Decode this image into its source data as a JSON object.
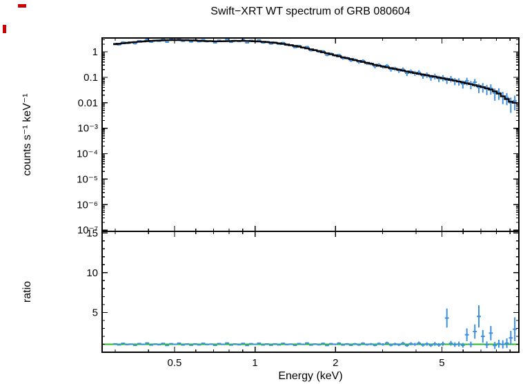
{
  "figure": {
    "title": "Swift−XRT WT spectrum of GRB 080604",
    "background": "#ffffff"
  },
  "chart_data": {
    "type": "scatter",
    "title": "Swift−XRT WT spectrum of GRB 080604",
    "xlabel": "Energy (keV)",
    "legend": "none",
    "grid": false,
    "bin_halfwidth_factor": 1.0175,
    "colors": {
      "data": "#3d8fe0",
      "model": "#000000",
      "unity_line": "#22bb22",
      "frame": "#000000",
      "text": "#000000",
      "corner_marks": "#cc0000"
    },
    "xticks": {
      "values": [
        0.5,
        1,
        2,
        5
      ],
      "labels": [
        "0.5",
        "1",
        "2",
        "5"
      ]
    },
    "x_minor_ticks": [
      0.3,
      0.4,
      0.6,
      0.7,
      0.8,
      0.9,
      3,
      4,
      6,
      7,
      8,
      9
    ],
    "x": [
      0.3,
      0.31,
      0.321,
      0.333,
      0.344,
      0.356,
      0.369,
      0.382,
      0.395,
      0.409,
      0.423,
      0.438,
      0.453,
      0.469,
      0.486,
      0.503,
      0.52,
      0.538,
      0.557,
      0.577,
      0.597,
      0.618,
      0.64,
      0.662,
      0.685,
      0.709,
      0.734,
      0.76,
      0.786,
      0.814,
      0.842,
      0.872,
      0.902,
      0.934,
      0.967,
      1.0,
      1.035,
      1.072,
      1.109,
      1.148,
      1.188,
      1.23,
      1.273,
      1.317,
      1.363,
      1.411,
      1.461,
      1.512,
      1.565,
      1.62,
      1.676,
      1.735,
      1.796,
      1.859,
      1.924,
      1.991,
      2.061,
      2.133,
      2.208,
      2.285,
      2.365,
      2.448,
      2.534,
      2.622,
      2.714,
      2.809,
      2.908,
      3.01,
      3.115,
      3.224,
      3.337,
      3.454,
      3.575,
      3.7,
      3.829,
      3.963,
      4.102,
      4.246,
      4.394,
      4.548,
      4.707,
      4.872,
      5.043,
      5.219,
      5.402,
      5.591,
      5.787,
      5.989,
      6.199,
      6.416,
      6.64,
      6.873,
      7.113,
      7.362,
      7.62,
      7.887,
      8.163,
      8.448,
      8.744,
      9.05,
      9.367
    ],
    "panels": [
      {
        "name": "spectrum",
        "ylabel": "counts s⁻¹ keV⁻¹",
        "xscale": "log",
        "yscale": "log",
        "xlim": [
          0.268,
          9.7
        ],
        "ylim": [
          8.9e-08,
          3.5
        ],
        "yticks": {
          "values": [
            1,
            0.1,
            0.01,
            0.001,
            0.0001,
            1e-05,
            1e-06,
            1e-07
          ],
          "labels": [
            "1",
            "0.1",
            "0.01",
            "10⁻³",
            "10⁻⁴",
            "10⁻⁵",
            "10⁻⁶",
            "10⁻⁷"
          ]
        },
        "series": [
          {
            "name": "data",
            "type": "errorbar",
            "y": [
              2.1,
              1.91,
              2.42,
              2.17,
              2.39,
              2.11,
              2.73,
              2.52,
              3.06,
              2.43,
              2.82,
              2.62,
              3.14,
              2.43,
              3.08,
              2.87,
              3.29,
              2.61,
              2.95,
              2.47,
              2.91,
              2.51,
              3.0,
              2.53,
              2.67,
              2.26,
              2.83,
              2.56,
              3.05,
              2.39,
              2.77,
              2.54,
              3.0,
              2.27,
              2.81,
              2.57,
              2.9,
              2.26,
              2.51,
              2.05,
              2.37,
              1.99,
              2.3,
              1.85,
              1.86,
              1.49,
              1.74,
              1.45,
              1.59,
              1.13,
              1.19,
              1.01,
              1.07,
              0.75,
              0.86,
              0.72,
              0.76,
              0.56,
              0.58,
              0.46,
              0.49,
              0.4,
              0.45,
              0.355,
              0.347,
              0.27,
              0.31,
              0.26,
              0.286,
              0.207,
              0.22,
              0.187,
              0.204,
              0.145,
              0.169,
              0.146,
              0.156,
              0.116,
              0.125,
              0.099,
              0.11,
              0.09,
              0.096,
              0.078,
              0.088,
              0.071,
              0.069,
              0.055,
              0.072,
              0.053,
              0.064,
              0.04,
              0.042,
              0.035,
              0.037,
              0.024,
              0.025,
              0.0178,
              0.016,
              0.01,
              0.012
            ],
            "yerr": [
              0.15,
              0.15,
              0.16,
              0.16,
              0.16,
              0.17,
              0.17,
              0.17,
              0.18,
              0.17,
              0.17,
              0.17,
              0.18,
              0.17,
              0.17,
              0.17,
              0.18,
              0.17,
              0.17,
              0.16,
              0.17,
              0.16,
              0.17,
              0.16,
              0.16,
              0.15,
              0.16,
              0.16,
              0.17,
              0.15,
              0.16,
              0.15,
              0.16,
              0.15,
              0.16,
              0.16,
              0.17,
              0.15,
              0.16,
              0.14,
              0.15,
              0.14,
              0.15,
              0.13,
              0.13,
              0.12,
              0.13,
              0.12,
              0.12,
              0.1,
              0.1,
              0.1,
              0.1,
              0.08,
              0.09,
              0.08,
              0.08,
              0.07,
              0.07,
              0.06,
              0.06,
              0.06,
              0.06,
              0.05,
              0.05,
              0.045,
              0.05,
              0.04,
              0.045,
              0.04,
              0.04,
              0.038,
              0.04,
              0.033,
              0.035,
              0.032,
              0.034,
              0.028,
              0.03,
              0.026,
              0.028,
              0.025,
              0.026,
              0.023,
              0.025,
              0.022,
              0.022,
              0.019,
              0.024,
              0.019,
              0.022,
              0.016,
              0.017,
              0.015,
              0.016,
              0.012,
              0.012,
              0.009,
              0.008,
              0.006,
              0.007
            ]
          },
          {
            "name": "model",
            "type": "step",
            "y": [
              2.0,
              2.08,
              2.16,
              2.26,
              2.34,
              2.42,
              2.5,
              2.57,
              2.64,
              2.7,
              2.74,
              2.79,
              2.83,
              2.86,
              2.88,
              2.9,
              2.89,
              2.87,
              2.84,
              2.81,
              2.77,
              2.73,
              2.68,
              2.64,
              2.62,
              2.6,
              2.6,
              2.61,
              2.63,
              2.66,
              2.69,
              2.7,
              2.7,
              2.67,
              2.63,
              2.6,
              2.54,
              2.48,
              2.41,
              2.33,
              2.26,
              2.16,
              2.05,
              1.93,
              1.82,
              1.71,
              1.6,
              1.48,
              1.37,
              1.26,
              1.16,
              1.07,
              0.96,
              0.88,
              0.8,
              0.73,
              0.67,
              0.61,
              0.56,
              0.52,
              0.47,
              0.44,
              0.4,
              0.37,
              0.34,
              0.31,
              0.285,
              0.265,
              0.247,
              0.23,
              0.214,
              0.199,
              0.184,
              0.17,
              0.158,
              0.147,
              0.137,
              0.128,
              0.12,
              0.112,
              0.105,
              0.098,
              0.091,
              0.085,
              0.079,
              0.074,
              0.068,
              0.063,
              0.058,
              0.054,
              0.049,
              0.045,
              0.041,
              0.037,
              0.033,
              0.028,
              0.023,
              0.018,
              0.014,
              0.011,
              0.01
            ]
          }
        ]
      },
      {
        "name": "ratio",
        "ylabel": "ratio",
        "xscale": "log",
        "yscale": "linear",
        "xlim": [
          0.268,
          9.7
        ],
        "ylim": [
          0,
          15.2
        ],
        "yticks": {
          "values": [
            5,
            10,
            15
          ],
          "labels": [
            "5",
            "10",
            "15"
          ]
        },
        "y_minor_step": 1,
        "series": [
          {
            "name": "ratio",
            "type": "errorbar",
            "y": [
              1.05,
              0.92,
              1.12,
              0.96,
              1.02,
              0.87,
              1.09,
              0.98,
              1.16,
              0.9,
              1.03,
              0.94,
              1.11,
              0.85,
              1.07,
              0.99,
              1.14,
              0.91,
              1.04,
              0.88,
              1.05,
              0.92,
              1.12,
              0.96,
              1.02,
              0.87,
              1.09,
              0.98,
              1.16,
              0.9,
              1.03,
              0.94,
              1.11,
              0.85,
              1.07,
              0.99,
              1.14,
              0.91,
              1.04,
              0.88,
              1.05,
              0.92,
              1.12,
              0.96,
              1.02,
              0.87,
              1.09,
              0.98,
              1.16,
              0.9,
              1.03,
              0.94,
              1.11,
              0.85,
              1.07,
              0.99,
              1.14,
              0.91,
              1.04,
              0.88,
              1.05,
              0.92,
              1.12,
              0.96,
              1.02,
              0.87,
              1.09,
              0.98,
              1.16,
              0.9,
              1.03,
              0.94,
              1.11,
              0.85,
              1.07,
              0.99,
              1.14,
              0.91,
              1.04,
              0.88,
              1.05,
              0.92,
              1.06,
              4.3,
              1.12,
              0.96,
              1.02,
              0.87,
              2.2,
              0.98,
              2.6,
              4.5,
              2.0,
              0.94,
              2.4,
              0.85,
              1.07,
              0.99,
              1.14,
              1.8,
              2.9
            ],
            "yerr": [
              0.07,
              0.07,
              0.07,
              0.07,
              0.07,
              0.07,
              0.07,
              0.07,
              0.08,
              0.07,
              0.07,
              0.07,
              0.07,
              0.06,
              0.07,
              0.07,
              0.07,
              0.07,
              0.07,
              0.06,
              0.07,
              0.07,
              0.07,
              0.07,
              0.07,
              0.06,
              0.07,
              0.07,
              0.08,
              0.06,
              0.07,
              0.07,
              0.07,
              0.06,
              0.07,
              0.07,
              0.08,
              0.07,
              0.07,
              0.07,
              0.08,
              0.08,
              0.08,
              0.08,
              0.08,
              0.08,
              0.08,
              0.08,
              0.09,
              0.08,
              0.09,
              0.09,
              0.1,
              0.09,
              0.1,
              0.1,
              0.11,
              0.1,
              0.11,
              0.11,
              0.12,
              0.12,
              0.13,
              0.13,
              0.14,
              0.13,
              0.15,
              0.15,
              0.17,
              0.16,
              0.17,
              0.17,
              0.19,
              0.17,
              0.19,
              0.19,
              0.21,
              0.2,
              0.22,
              0.21,
              0.24,
              0.23,
              0.26,
              1.2,
              0.3,
              0.29,
              0.31,
              0.3,
              0.8,
              0.36,
              0.9,
              1.4,
              0.8,
              0.42,
              0.9,
              0.45,
              0.5,
              0.52,
              0.6,
              0.9,
              1.5
            ]
          },
          {
            "name": "unity",
            "type": "hline",
            "value": 1
          }
        ]
      }
    ],
    "decorations": [
      {
        "name": "corner-mark-1",
        "x": 26,
        "y": 6,
        "w": 12,
        "h": 5
      },
      {
        "name": "corner-mark-2",
        "x": 4,
        "y": 36,
        "w": 5,
        "h": 12
      }
    ]
  }
}
